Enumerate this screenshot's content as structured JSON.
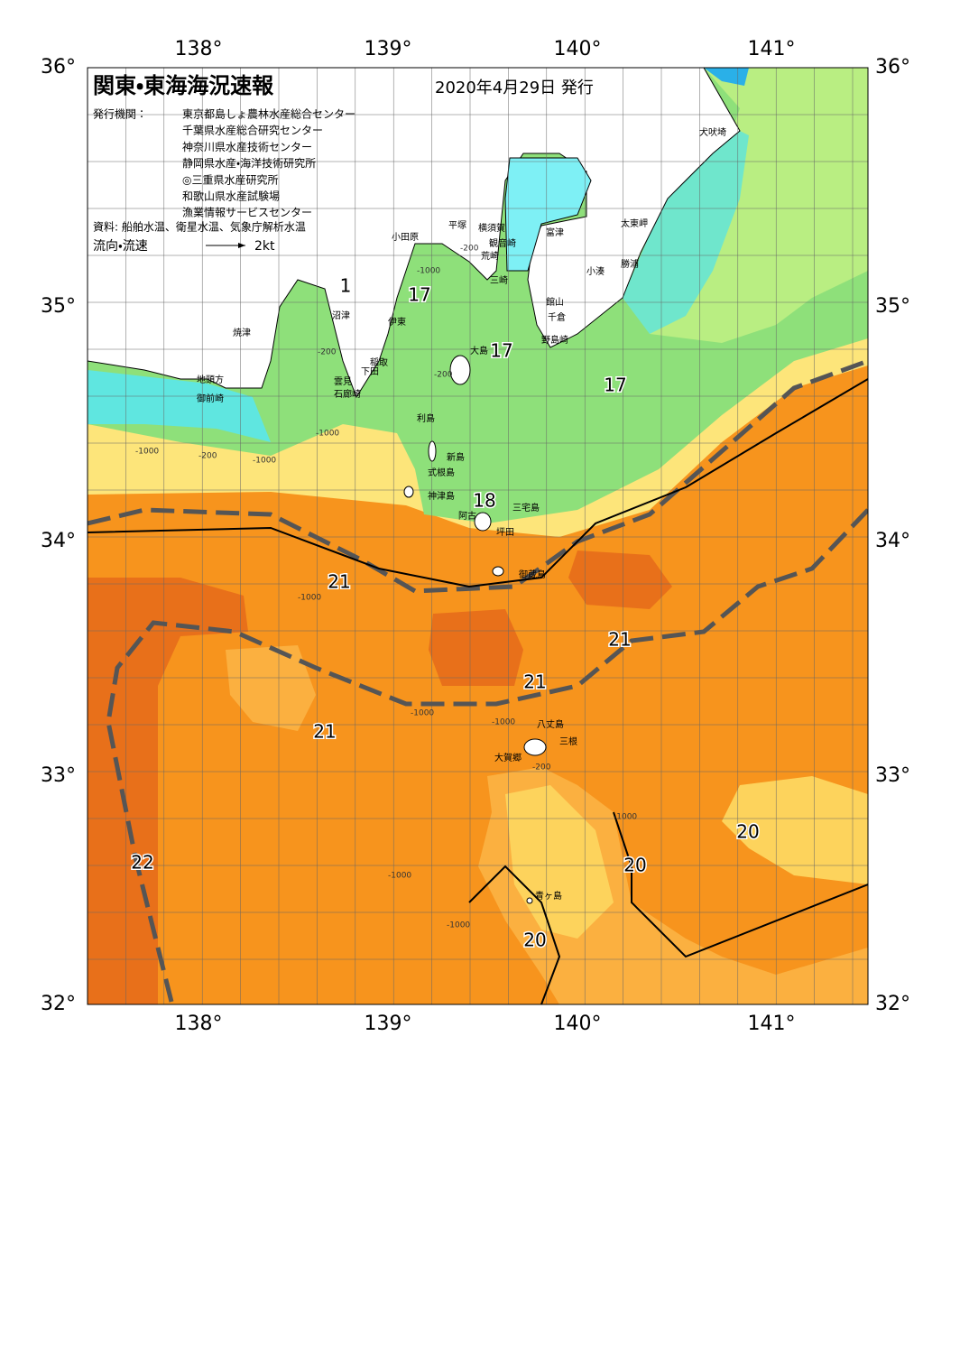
{
  "header": {
    "title": "関東・東海海況速報",
    "date": "2020年4月29日 発行",
    "issuers_label": "発行機関：",
    "issuers": [
      "東京都島しょ農林水産総合センター",
      "千葉県水産総合研究センター",
      "神奈川県水産技術センター",
      "静岡県水産・海洋技術研究所",
      "◎三重県水産研究所",
      "和歌山県水産試験場",
      "漁業情報サービスセンター"
    ],
    "source": "資料: 船舶水温、衛星水温、気象庁解析水温",
    "flow_label": "流向・流速",
    "flow_scale": "2kt"
  },
  "axes": {
    "lat": [
      "36°",
      "35°",
      "34°",
      "33°",
      "32°"
    ],
    "lon": [
      "138°",
      "139°",
      "140°",
      "141°"
    ]
  },
  "places": [
    "犬吠埼",
    "太東岬",
    "勝浦",
    "小湊",
    "館山",
    "千倉",
    "野島崎",
    "富津",
    "横須賀",
    "観音崎",
    "荒崎",
    "三崎",
    "平塚",
    "小田原",
    "沼津",
    "伊東",
    "焼津",
    "稲取",
    "下田",
    "雲見",
    "石廊崎",
    "地頭方",
    "御前崎",
    "大島",
    "利島",
    "新島",
    "式根島",
    "神津島",
    "三宅島",
    "阿古",
    "坪田",
    "御蔵島",
    "八丈島",
    "三根",
    "大賀郷",
    "青ヶ島"
  ],
  "temperatures": [
    "1",
    "17",
    "17",
    "17",
    "18",
    "21",
    "21",
    "21",
    "21",
    "22",
    "20",
    "20",
    "20"
  ],
  "depths": [
    "-200",
    "-1000",
    "-200",
    "-200",
    "-1000",
    "-1000",
    "-200",
    "-1000",
    "-1000",
    "-1000",
    "-1000",
    "-200",
    "-1000",
    "-1000",
    "-1000"
  ]
}
